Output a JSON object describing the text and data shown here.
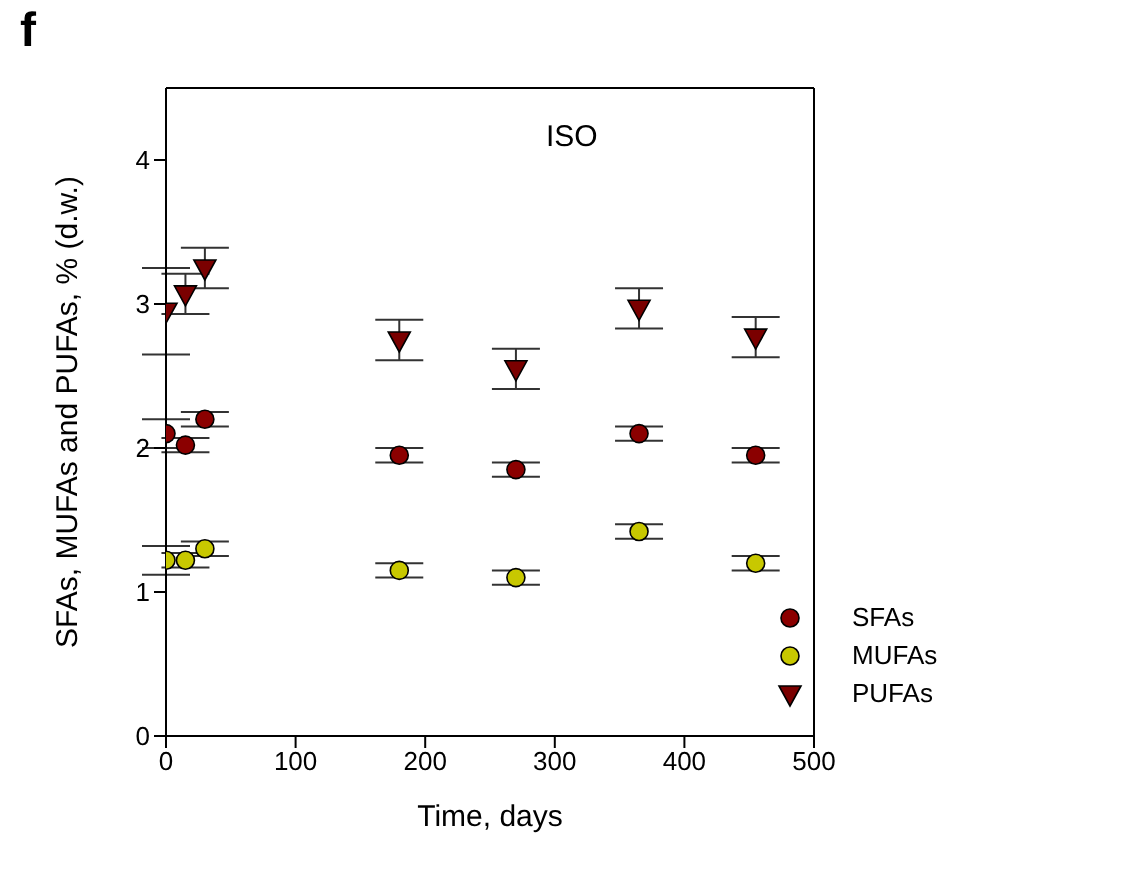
{
  "chart_data": {
    "type": "scatter",
    "title": "f",
    "xlabel": "Time, days",
    "ylabel": "SFAs, MUFAs and PUFAs, % (d.w.)",
    "annotations": [
      "ISO"
    ],
    "x": [
      0,
      15,
      30,
      180,
      270,
      365,
      455
    ],
    "series": [
      {
        "name": "SFAs",
        "color": "#8b0000",
        "marker": "circle",
        "values": [
          2.1,
          2.02,
          2.2,
          1.95,
          1.85,
          2.1,
          1.95
        ],
        "errors": [
          0.1,
          0.05,
          0.05,
          0.05,
          0.05,
          0.05,
          0.05
        ]
      },
      {
        "name": "MUFAs",
        "color": "#c8c800",
        "marker": "circle",
        "values": [
          1.22,
          1.22,
          1.3,
          1.15,
          1.1,
          1.42,
          1.2
        ],
        "errors": [
          0.1,
          0.05,
          0.05,
          0.05,
          0.05,
          0.05,
          0.05
        ]
      },
      {
        "name": "PUFAs",
        "color": "#7a0000",
        "marker": "triangle",
        "values": [
          2.95,
          3.07,
          3.25,
          2.75,
          2.55,
          2.97,
          2.77
        ],
        "errors": [
          0.3,
          0.14,
          0.14,
          0.14,
          0.14,
          0.14,
          0.14
        ]
      }
    ],
    "xlim": [
      0,
      500
    ],
    "xticks": [
      0,
      100,
      200,
      300,
      400,
      500
    ],
    "ylim": [
      0,
      4.5
    ],
    "yticks": [
      0,
      1,
      2,
      3,
      4
    ],
    "grid": false,
    "legend": "bottom right"
  }
}
